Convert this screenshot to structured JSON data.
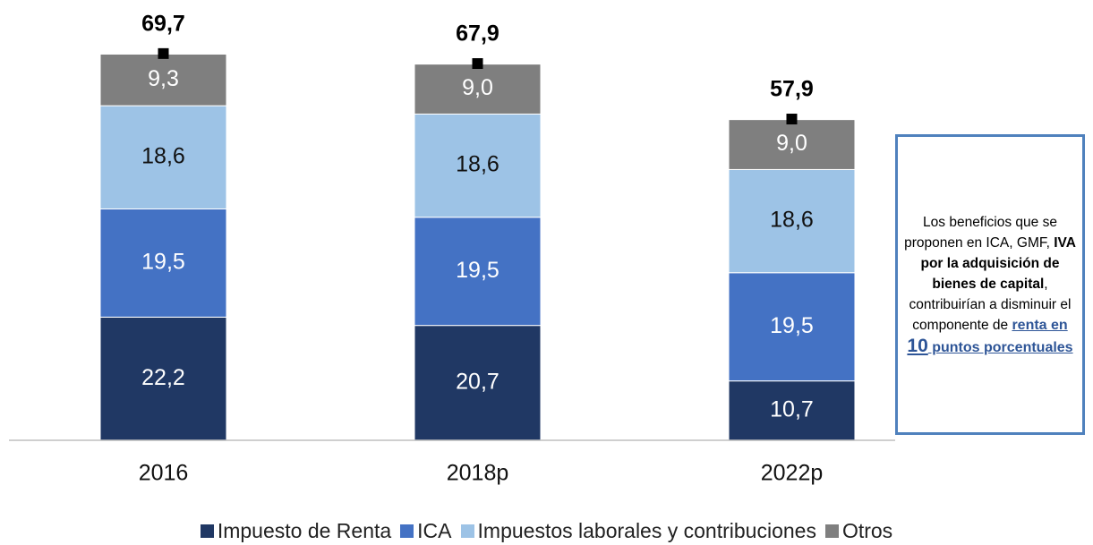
{
  "chart_data": {
    "type": "stacked_bar",
    "categories": [
      "2016",
      "2018p",
      "2022p"
    ],
    "series": [
      {
        "name": "Impuesto de Renta",
        "color": "#203864",
        "values": [
          22.2,
          20.7,
          10.7
        ],
        "value_labels": [
          "22,2",
          "20,7",
          "10,7"
        ]
      },
      {
        "name": "ICA",
        "color": "#4472c4",
        "values": [
          19.5,
          19.5,
          19.5
        ],
        "value_labels": [
          "19,5",
          "19,5",
          "19,5"
        ]
      },
      {
        "name": "Impuestos laborales y contribuciones",
        "color": "#9dc3e6",
        "values": [
          18.6,
          18.6,
          18.6
        ],
        "value_labels": [
          "18,6",
          "18,6",
          "18,6"
        ]
      },
      {
        "name": "Otros",
        "color": "#7f7f7f",
        "values": [
          9.3,
          9.0,
          9.0
        ],
        "value_labels": [
          "9,3",
          "9,0",
          "9,0"
        ]
      }
    ],
    "totals": {
      "values": [
        69.7,
        67.9,
        57.9
      ],
      "value_labels": [
        "69,7",
        "67,9",
        "57,9"
      ]
    },
    "ylim": [
      0,
      75
    ],
    "legend": "bottom",
    "annotation": {
      "parts": [
        "Los beneficios que se proponen en ICA, GMF, ",
        "IVA por la adquisición de bienes de capital",
        ", contribuirían a disminuir el componente de ",
        "renta en ",
        "10",
        " puntos porcentuales"
      ]
    }
  }
}
